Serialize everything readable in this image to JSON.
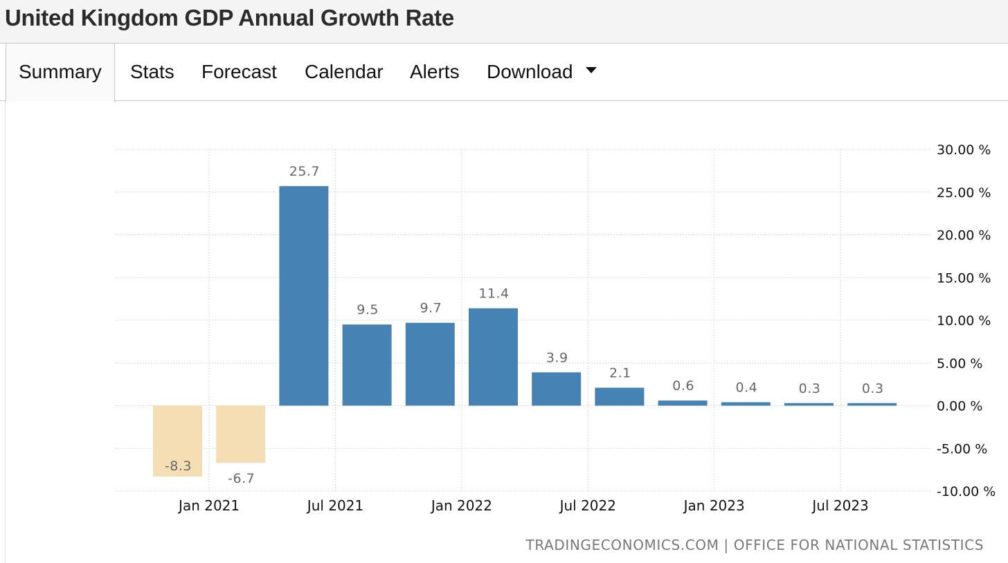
{
  "page": {
    "title": "United Kingdom GDP Annual Growth Rate"
  },
  "tabs": [
    {
      "label": "Summary",
      "active": true
    },
    {
      "label": "Stats"
    },
    {
      "label": "Forecast"
    },
    {
      "label": "Calendar"
    },
    {
      "label": "Alerts"
    },
    {
      "label": "Download"
    }
  ],
  "colors": {
    "positive_bar": "#4682b4",
    "negative_bar": "#f5deb3",
    "grid": "#d8d8d8"
  },
  "chart_data": {
    "type": "bar",
    "title": "United Kingdom GDP Annual Growth Rate",
    "categories": [
      "2020-Q4",
      "2021-Q1",
      "2021-Q2",
      "2021-Q3",
      "2021-Q4",
      "2022-Q1",
      "2022-Q2",
      "2022-Q3",
      "2022-Q4",
      "2023-Q1",
      "2023-Q2",
      "2023-Q3"
    ],
    "values": [
      -8.3,
      -6.7,
      25.7,
      9.5,
      9.7,
      11.4,
      3.9,
      2.1,
      0.6,
      0.4,
      0.3,
      0.3
    ],
    "value_labels": [
      "-8.3",
      "-6.7",
      "25.7",
      "9.5",
      "9.7",
      "11.4",
      "3.9",
      "2.1",
      "0.6",
      "0.4",
      "0.3",
      "0.3"
    ],
    "ylim": [
      -10,
      30
    ],
    "yticks": [
      30,
      25,
      20,
      15,
      10,
      5,
      0,
      -5,
      -10
    ],
    "ytick_labels": [
      "30.00 %",
      "25.00 %",
      "20.00 %",
      "15.00 %",
      "10.00 %",
      "5.00 %",
      "0.00 %",
      "-5.00 %",
      "-10.00 %"
    ],
    "xtick_labels": [
      "Jan 2021",
      "Jul 2021",
      "Jan 2022",
      "Jul 2022",
      "Jan 2023",
      "Jul 2023"
    ],
    "xtick_positions": [
      0.5,
      2.5,
      4.5,
      6.5,
      8.5,
      10.5
    ],
    "grid": true,
    "y_axis_side": "right"
  },
  "source": {
    "text": "TRADINGECONOMICS.COM | OFFICE FOR NATIONAL STATISTICS"
  }
}
